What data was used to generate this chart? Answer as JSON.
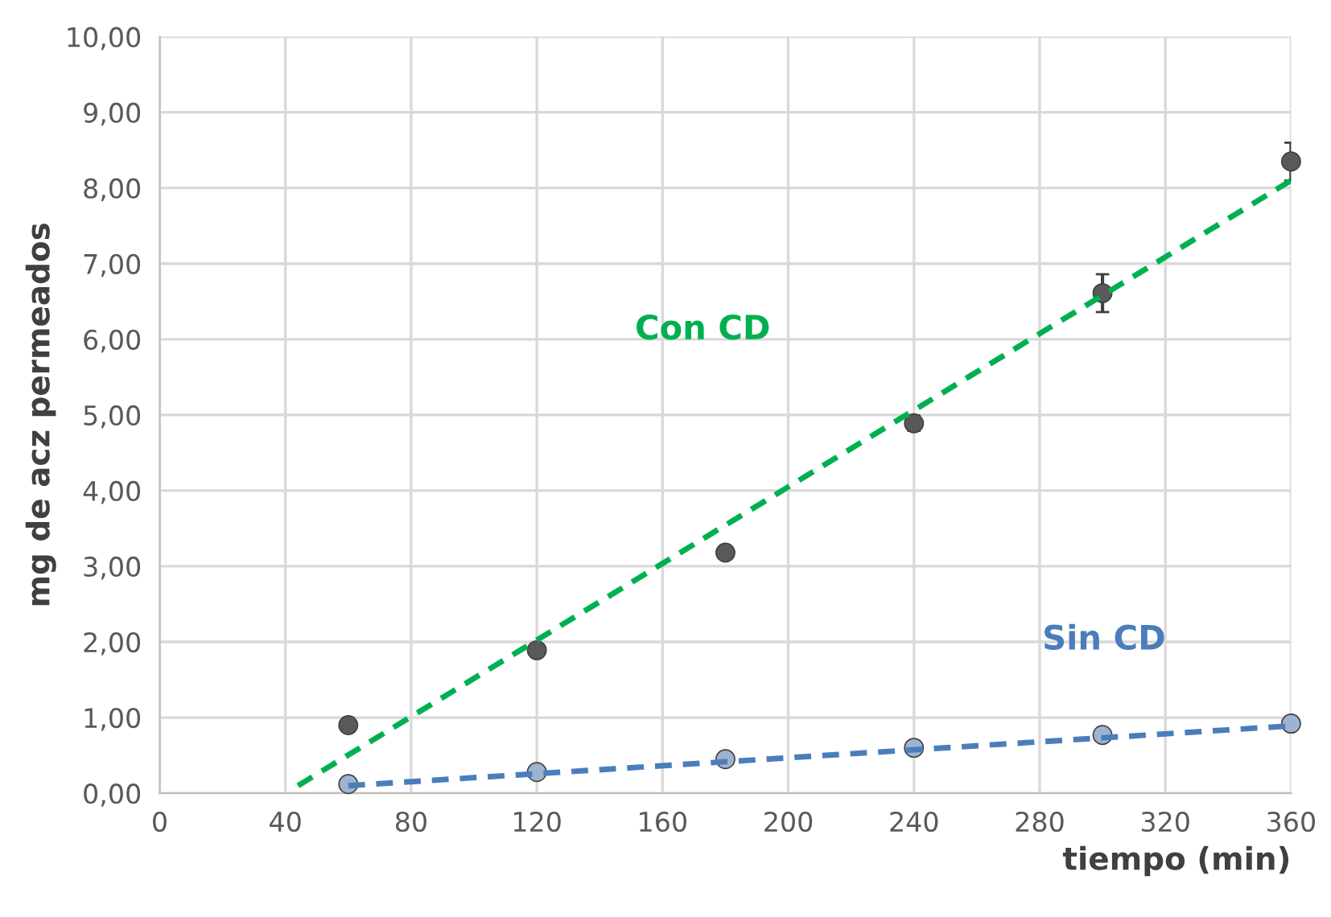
{
  "chart_data": {
    "type": "scatter",
    "xlabel": "tiempo (min)",
    "ylabel": "mg de acz permeados",
    "xlim": [
      0,
      360
    ],
    "xticks": [
      0,
      40,
      80,
      120,
      160,
      200,
      240,
      280,
      320,
      360
    ],
    "ylim": [
      0,
      10
    ],
    "yticks": [
      {
        "value": 0,
        "label": "0,00"
      },
      {
        "value": 1,
        "label": "1,00"
      },
      {
        "value": 2,
        "label": "2,00"
      },
      {
        "value": 3,
        "label": "3,00"
      },
      {
        "value": 4,
        "label": "4,00"
      },
      {
        "value": 5,
        "label": "5,00"
      },
      {
        "value": 6,
        "label": "6,00"
      },
      {
        "value": 7,
        "label": "7,00"
      },
      {
        "value": 8,
        "label": "8,00"
      },
      {
        "value": 9,
        "label": "9,00"
      },
      {
        "value": 10,
        "label": "10,00"
      }
    ],
    "grid": true,
    "legend": false,
    "series": [
      {
        "marker": "circle",
        "color": "#595959",
        "x": [
          60,
          120,
          180,
          240,
          300,
          360
        ],
        "values": [
          0.9,
          1.89,
          3.18,
          4.89,
          6.61,
          8.35
        ],
        "errors": [
          0.05,
          0.05,
          0.05,
          0.1,
          0.25,
          0.25
        ]
      },
      {
        "marker": "circle",
        "color": "#9db3cf",
        "x": [
          60,
          120,
          180,
          240,
          300,
          360
        ],
        "values": [
          0.12,
          0.28,
          0.45,
          0.6,
          0.77,
          0.92
        ]
      },
      {
        "type": "line",
        "marker": "none",
        "name": "Con CD",
        "color": "#00b050",
        "line_style": "dashed",
        "x": [
          44,
          360
        ],
        "values": [
          0.1,
          8.1
        ]
      },
      {
        "type": "line",
        "marker": "none",
        "name": "Sin CD",
        "color": "#4a7ebb",
        "line_style": "dashed",
        "x": [
          60,
          360
        ],
        "values": [
          0.1,
          0.89
        ]
      }
    ]
  }
}
